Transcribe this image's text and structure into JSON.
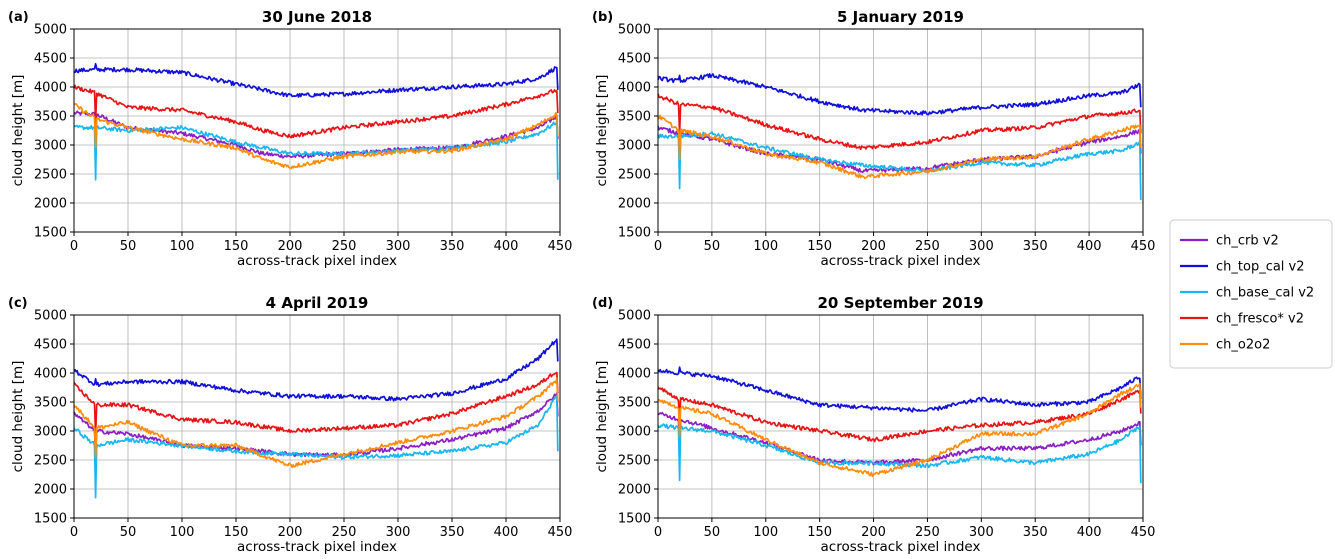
{
  "chart_data": {
    "type": "line",
    "xlabel": "across-track pixel index",
    "ylabel": "cloud height [m]",
    "xlim": [
      0,
      450
    ],
    "ylim": [
      1500,
      5000
    ],
    "xticks": [
      0,
      50,
      100,
      150,
      200,
      250,
      300,
      350,
      400,
      450
    ],
    "yticks": [
      1500,
      2000,
      2500,
      3000,
      3500,
      4000,
      4500,
      5000
    ],
    "grid": true,
    "legend_position": "right-middle",
    "legend": [
      {
        "name": "ch_crb v2",
        "color": "#8a1fc4"
      },
      {
        "name": "ch_top_cal v2",
        "color": "#1010d8"
      },
      {
        "name": "ch_base_cal v2",
        "color": "#19b6ef"
      },
      {
        "name": "ch_fresco* v2",
        "color": "#e61414"
      },
      {
        "name": "ch_o2o2",
        "color": "#ff8c0a"
      }
    ],
    "panels": [
      {
        "label": "(a)",
        "title": "30 June 2018",
        "series": [
          {
            "name": "ch_crb v2",
            "x": [
              0,
              20,
              50,
              100,
              150,
              175,
              200,
              250,
              300,
              350,
              400,
              430,
              448
            ],
            "y": [
              3550,
              3530,
              3300,
              3200,
              3000,
              2850,
              2800,
              2850,
              2920,
              2950,
              3150,
              3300,
              3500
            ]
          },
          {
            "name": "ch_top_cal v2",
            "x": [
              0,
              20,
              50,
              100,
              150,
              175,
              200,
              250,
              300,
              350,
              400,
              430,
              448
            ],
            "y": [
              4280,
              4300,
              4300,
              4250,
              4050,
              3950,
              3850,
              3880,
              3950,
              4000,
              4050,
              4150,
              4350
            ]
          },
          {
            "name": "ch_base_cal v2",
            "x": [
              0,
              20,
              50,
              100,
              150,
              175,
              200,
              250,
              300,
              350,
              400,
              430,
              448
            ],
            "y": [
              3300,
              3300,
              3250,
              3300,
              3050,
              2950,
              2850,
              2850,
              2900,
              2950,
              3050,
              3200,
              3400
            ]
          },
          {
            "name": "ch_fresco* v2",
            "x": [
              0,
              20,
              50,
              100,
              150,
              175,
              200,
              250,
              300,
              350,
              400,
              430,
              448
            ],
            "y": [
              4000,
              3900,
              3650,
              3600,
              3400,
              3250,
              3150,
              3300,
              3400,
              3500,
              3700,
              3850,
              3950
            ]
          },
          {
            "name": "ch_o2o2",
            "x": [
              0,
              20,
              50,
              100,
              150,
              175,
              200,
              250,
              300,
              350,
              400,
              430,
              448
            ],
            "y": [
              3700,
              3450,
              3300,
              3100,
              2950,
              2750,
              2620,
              2800,
              2880,
              2900,
              3100,
              3350,
              3550
            ]
          }
        ]
      },
      {
        "label": "(b)",
        "title": "5 January 2019",
        "series": [
          {
            "name": "ch_crb v2",
            "x": [
              0,
              20,
              50,
              100,
              150,
              190,
              250,
              300,
              350,
              400,
              430,
              448
            ],
            "y": [
              3300,
              3200,
              3100,
              2850,
              2750,
              2550,
              2600,
              2750,
              2800,
              3050,
              3150,
              3250
            ]
          },
          {
            "name": "ch_top_cal v2",
            "x": [
              0,
              20,
              50,
              100,
              150,
              190,
              250,
              300,
              350,
              400,
              430,
              448
            ],
            "y": [
              4150,
              4100,
              4200,
              4000,
              3750,
              3600,
              3550,
              3650,
              3700,
              3850,
              3900,
              4050
            ]
          },
          {
            "name": "ch_base_cal v2",
            "x": [
              0,
              20,
              50,
              100,
              150,
              190,
              250,
              300,
              350,
              400,
              430,
              448
            ],
            "y": [
              3150,
              3150,
              3200,
              2950,
              2750,
              2650,
              2550,
              2700,
              2650,
              2850,
              2900,
              3050
            ]
          },
          {
            "name": "ch_fresco* v2",
            "x": [
              0,
              20,
              50,
              100,
              150,
              190,
              250,
              300,
              350,
              400,
              430,
              448
            ],
            "y": [
              3850,
              3700,
              3650,
              3350,
              3100,
              2950,
              3050,
              3250,
              3300,
              3500,
              3550,
              3600
            ]
          },
          {
            "name": "ch_o2o2",
            "x": [
              0,
              20,
              50,
              100,
              150,
              190,
              250,
              300,
              350,
              400,
              430,
              448
            ],
            "y": [
              3500,
              3250,
              3150,
              2850,
              2700,
              2450,
              2550,
              2750,
              2800,
              3100,
              3250,
              3350
            ]
          }
        ]
      },
      {
        "label": "(c)",
        "title": "4 April 2019",
        "series": [
          {
            "name": "ch_crb v2",
            "x": [
              0,
              20,
              50,
              100,
              150,
              200,
              250,
              300,
              350,
              400,
              430,
              448
            ],
            "y": [
              3300,
              3000,
              2950,
              2750,
              2700,
              2600,
              2580,
              2700,
              2850,
              3050,
              3350,
              3650
            ]
          },
          {
            "name": "ch_top_cal v2",
            "x": [
              0,
              20,
              50,
              100,
              150,
              200,
              250,
              300,
              350,
              400,
              430,
              448
            ],
            "y": [
              4050,
              3800,
              3850,
              3850,
              3700,
              3600,
              3600,
              3550,
              3650,
              3900,
              4250,
              4600
            ]
          },
          {
            "name": "ch_base_cal v2",
            "x": [
              0,
              20,
              50,
              100,
              150,
              200,
              250,
              300,
              350,
              400,
              430,
              448
            ],
            "y": [
              3050,
              2750,
              2850,
              2750,
              2650,
              2600,
              2550,
              2580,
              2650,
              2800,
              3100,
              3650
            ]
          },
          {
            "name": "ch_fresco* v2",
            "x": [
              0,
              20,
              50,
              100,
              150,
              200,
              250,
              300,
              350,
              400,
              430,
              448
            ],
            "y": [
              3800,
              3450,
              3450,
              3200,
              3150,
              3000,
              3050,
              3100,
              3300,
              3600,
              3800,
              4050
            ]
          },
          {
            "name": "ch_o2o2",
            "x": [
              0,
              20,
              50,
              100,
              150,
              200,
              250,
              300,
              350,
              400,
              430,
              448
            ],
            "y": [
              3450,
              3050,
              3150,
              2750,
              2750,
              2400,
              2600,
              2800,
              3000,
              3250,
              3600,
              3900
            ]
          }
        ]
      },
      {
        "label": "(d)",
        "title": "20 September 2019",
        "series": [
          {
            "name": "ch_crb v2",
            "x": [
              0,
              20,
              50,
              100,
              150,
              200,
              250,
              300,
              350,
              400,
              430,
              448
            ],
            "y": [
              3300,
              3200,
              3050,
              2800,
              2500,
              2450,
              2500,
              2700,
              2700,
              2850,
              3000,
              3150
            ]
          },
          {
            "name": "ch_top_cal v2",
            "x": [
              0,
              20,
              50,
              100,
              150,
              200,
              250,
              300,
              350,
              400,
              430,
              448
            ],
            "y": [
              4050,
              4000,
              3950,
              3700,
              3450,
              3400,
              3350,
              3550,
              3450,
              3500,
              3750,
              3950
            ]
          },
          {
            "name": "ch_base_cal v2",
            "x": [
              0,
              20,
              50,
              100,
              150,
              200,
              250,
              300,
              350,
              400,
              430,
              448
            ],
            "y": [
              3100,
              3050,
              3000,
              2750,
              2450,
              2450,
              2400,
              2550,
              2450,
              2600,
              2850,
              3100
            ]
          },
          {
            "name": "ch_fresco* v2",
            "x": [
              0,
              20,
              50,
              100,
              150,
              200,
              250,
              300,
              350,
              400,
              430,
              448
            ],
            "y": [
              3750,
              3550,
              3450,
              3150,
              3000,
              2850,
              3000,
              3100,
              3150,
              3300,
              3550,
              3700
            ]
          },
          {
            "name": "ch_o2o2",
            "x": [
              0,
              20,
              50,
              100,
              150,
              200,
              250,
              300,
              350,
              400,
              430,
              448
            ],
            "y": [
              3550,
              3400,
              3300,
              2850,
              2450,
              2250,
              2500,
              2950,
              2950,
              3300,
              3650,
              3800
            ]
          }
        ]
      }
    ]
  }
}
